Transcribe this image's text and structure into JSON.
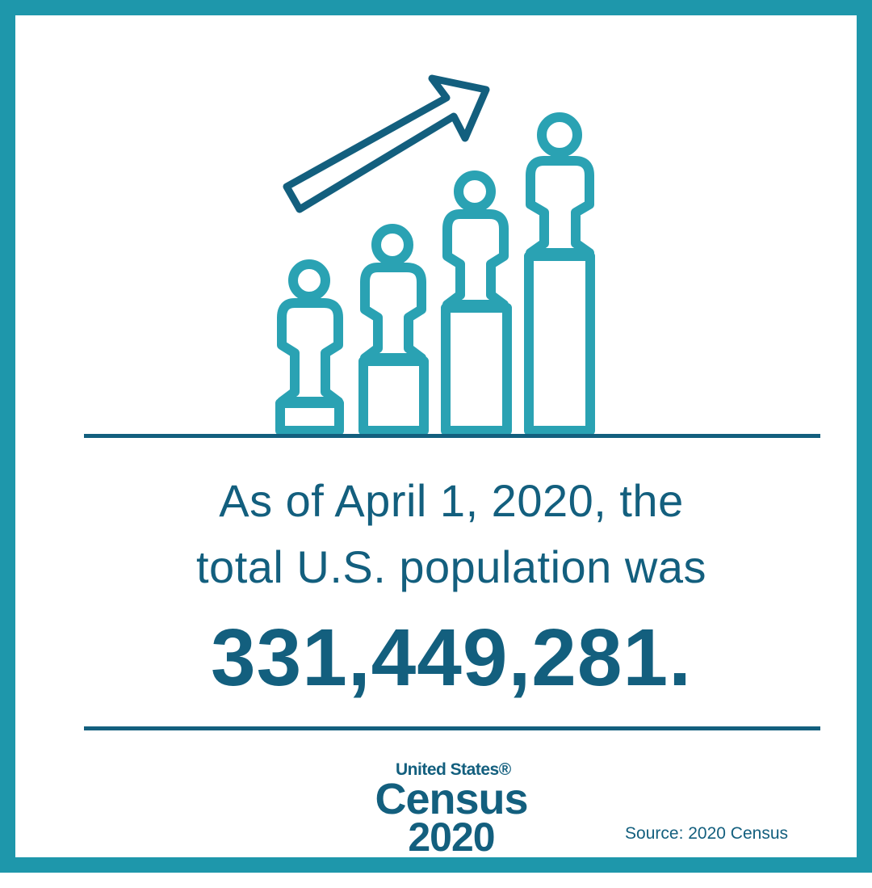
{
  "headline": {
    "line1": "As of April 1, 2020, the",
    "line2": "total U.S. population was"
  },
  "figure": {
    "value": "331,449,281."
  },
  "logo": {
    "top": "United States®",
    "middle": "Census",
    "year": "2020"
  },
  "source": {
    "text": "Source: 2020 Census"
  },
  "colors": {
    "frame": "#1e97ab",
    "dark": "#135f7e",
    "teal": "#2aa2b3"
  },
  "icons": [
    "growth-arrow-icon",
    "person-on-pedestal-icon"
  ]
}
